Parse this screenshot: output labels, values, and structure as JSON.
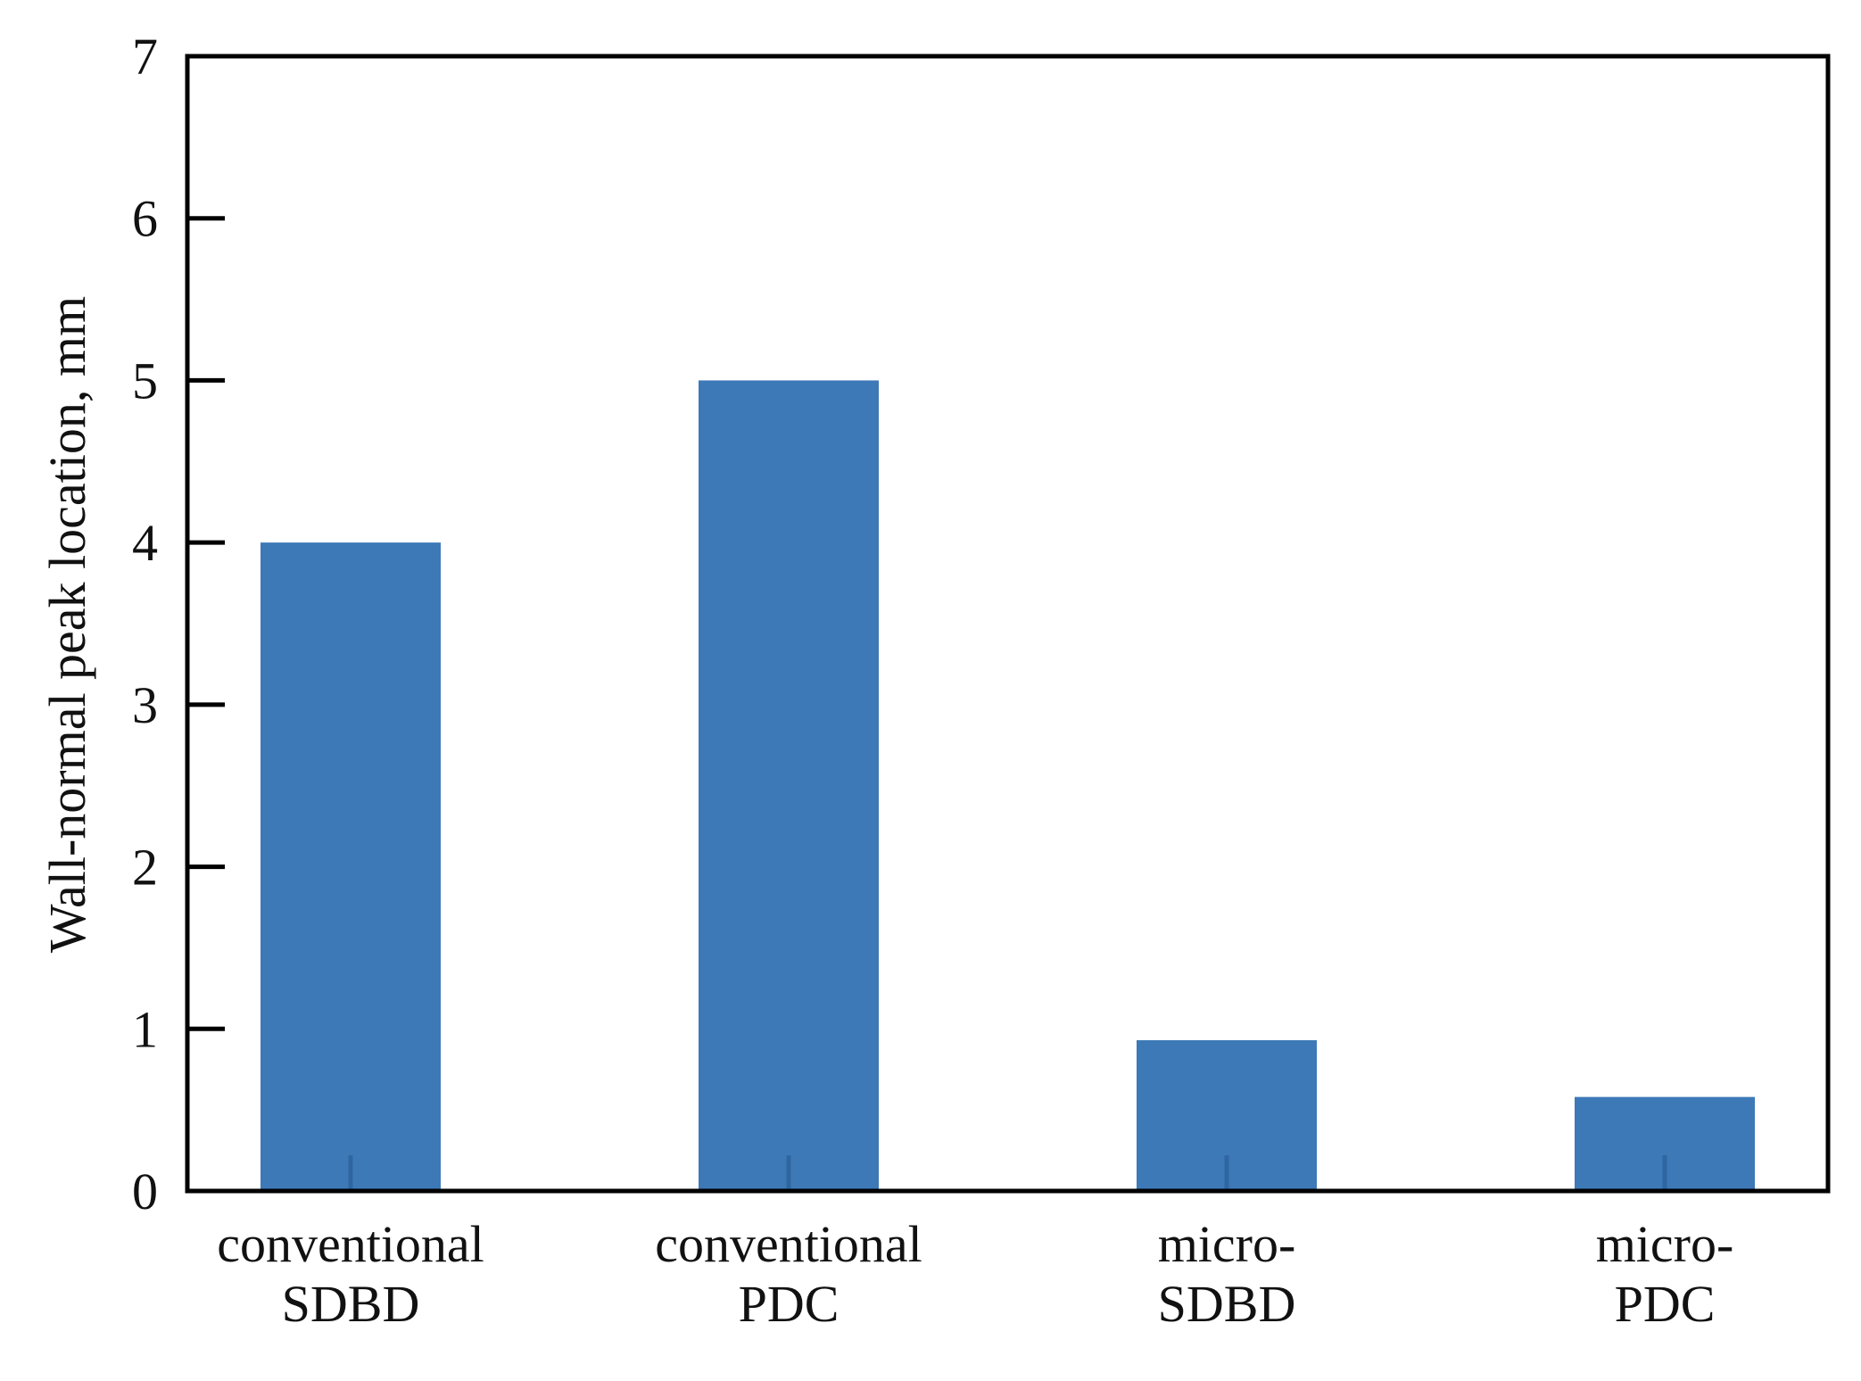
{
  "chart_data": {
    "type": "bar",
    "title": "",
    "xlabel": "",
    "ylabel": "Wall-normal peak location, mm",
    "categories": [
      [
        "conventional",
        "SDBD"
      ],
      [
        "conventional",
        "PDC"
      ],
      [
        "micro-",
        "SDBD"
      ],
      [
        "micro-",
        "PDC"
      ]
    ],
    "values": [
      4.0,
      5.0,
      0.93,
      0.58
    ],
    "ylim": [
      0,
      7
    ],
    "yticks": [
      0,
      1,
      2,
      3,
      4,
      5,
      6,
      7
    ],
    "grid": false,
    "legend": "none",
    "bar_color": "#3d79b7",
    "axis_color": "#000000"
  }
}
